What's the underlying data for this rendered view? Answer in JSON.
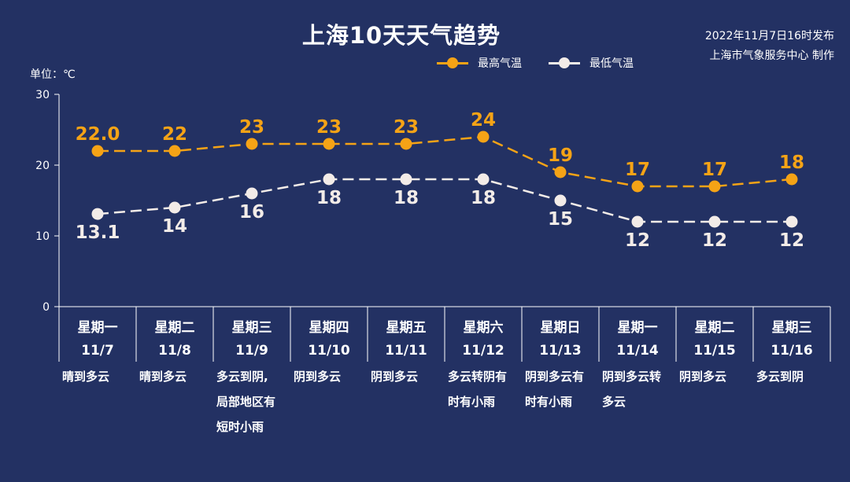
{
  "page": {
    "publish_line1": "2022年11月7日16时发布",
    "publish_line2": "上海市气象服务中心 制作",
    "bg_color": "#233163"
  },
  "chart_data": {
    "type": "line",
    "title": "上海10天天气趋势",
    "ylabel": "单位：℃",
    "ylim": [
      0,
      30
    ],
    "yticks": [
      0,
      10,
      20,
      30
    ],
    "legend_position": "top-center",
    "categories": [
      {
        "weekday": "星期一",
        "date": "11/7",
        "weather": [
          "晴到多云"
        ]
      },
      {
        "weekday": "星期二",
        "date": "11/8",
        "weather": [
          "晴到多云"
        ]
      },
      {
        "weekday": "星期三",
        "date": "11/9",
        "weather": [
          "多云到阴,",
          "局部地区有",
          "短时小雨"
        ]
      },
      {
        "weekday": "星期四",
        "date": "11/10",
        "weather": [
          "阴到多云"
        ]
      },
      {
        "weekday": "星期五",
        "date": "11/11",
        "weather": [
          "阴到多云"
        ]
      },
      {
        "weekday": "星期六",
        "date": "11/12",
        "weather": [
          "多云转阴有",
          "时有小雨"
        ]
      },
      {
        "weekday": "星期日",
        "date": "11/13",
        "weather": [
          "阴到多云有",
          "时有小雨"
        ]
      },
      {
        "weekday": "星期一",
        "date": "11/14",
        "weather": [
          "阴到多云转",
          "多云"
        ]
      },
      {
        "weekday": "星期二",
        "date": "11/15",
        "weather": [
          "阴到多云"
        ]
      },
      {
        "weekday": "星期三",
        "date": "11/16",
        "weather": [
          "多云到阴"
        ]
      }
    ],
    "series": [
      {
        "name": "最高气温",
        "color": "#f5a316",
        "values": [
          22.0,
          22,
          23,
          23,
          23,
          24,
          19,
          17,
          17,
          18
        ],
        "labels": [
          "22.0",
          "22",
          "23",
          "23",
          "23",
          "24",
          "19",
          "17",
          "17",
          "18"
        ]
      },
      {
        "name": "最低气温",
        "color": "#f3ece8",
        "values": [
          13.1,
          14,
          16,
          18,
          18,
          18,
          15,
          12,
          12,
          12
        ],
        "labels": [
          "13.1",
          "14",
          "16",
          "18",
          "18",
          "18",
          "15",
          "12",
          "12",
          "12"
        ]
      }
    ]
  }
}
